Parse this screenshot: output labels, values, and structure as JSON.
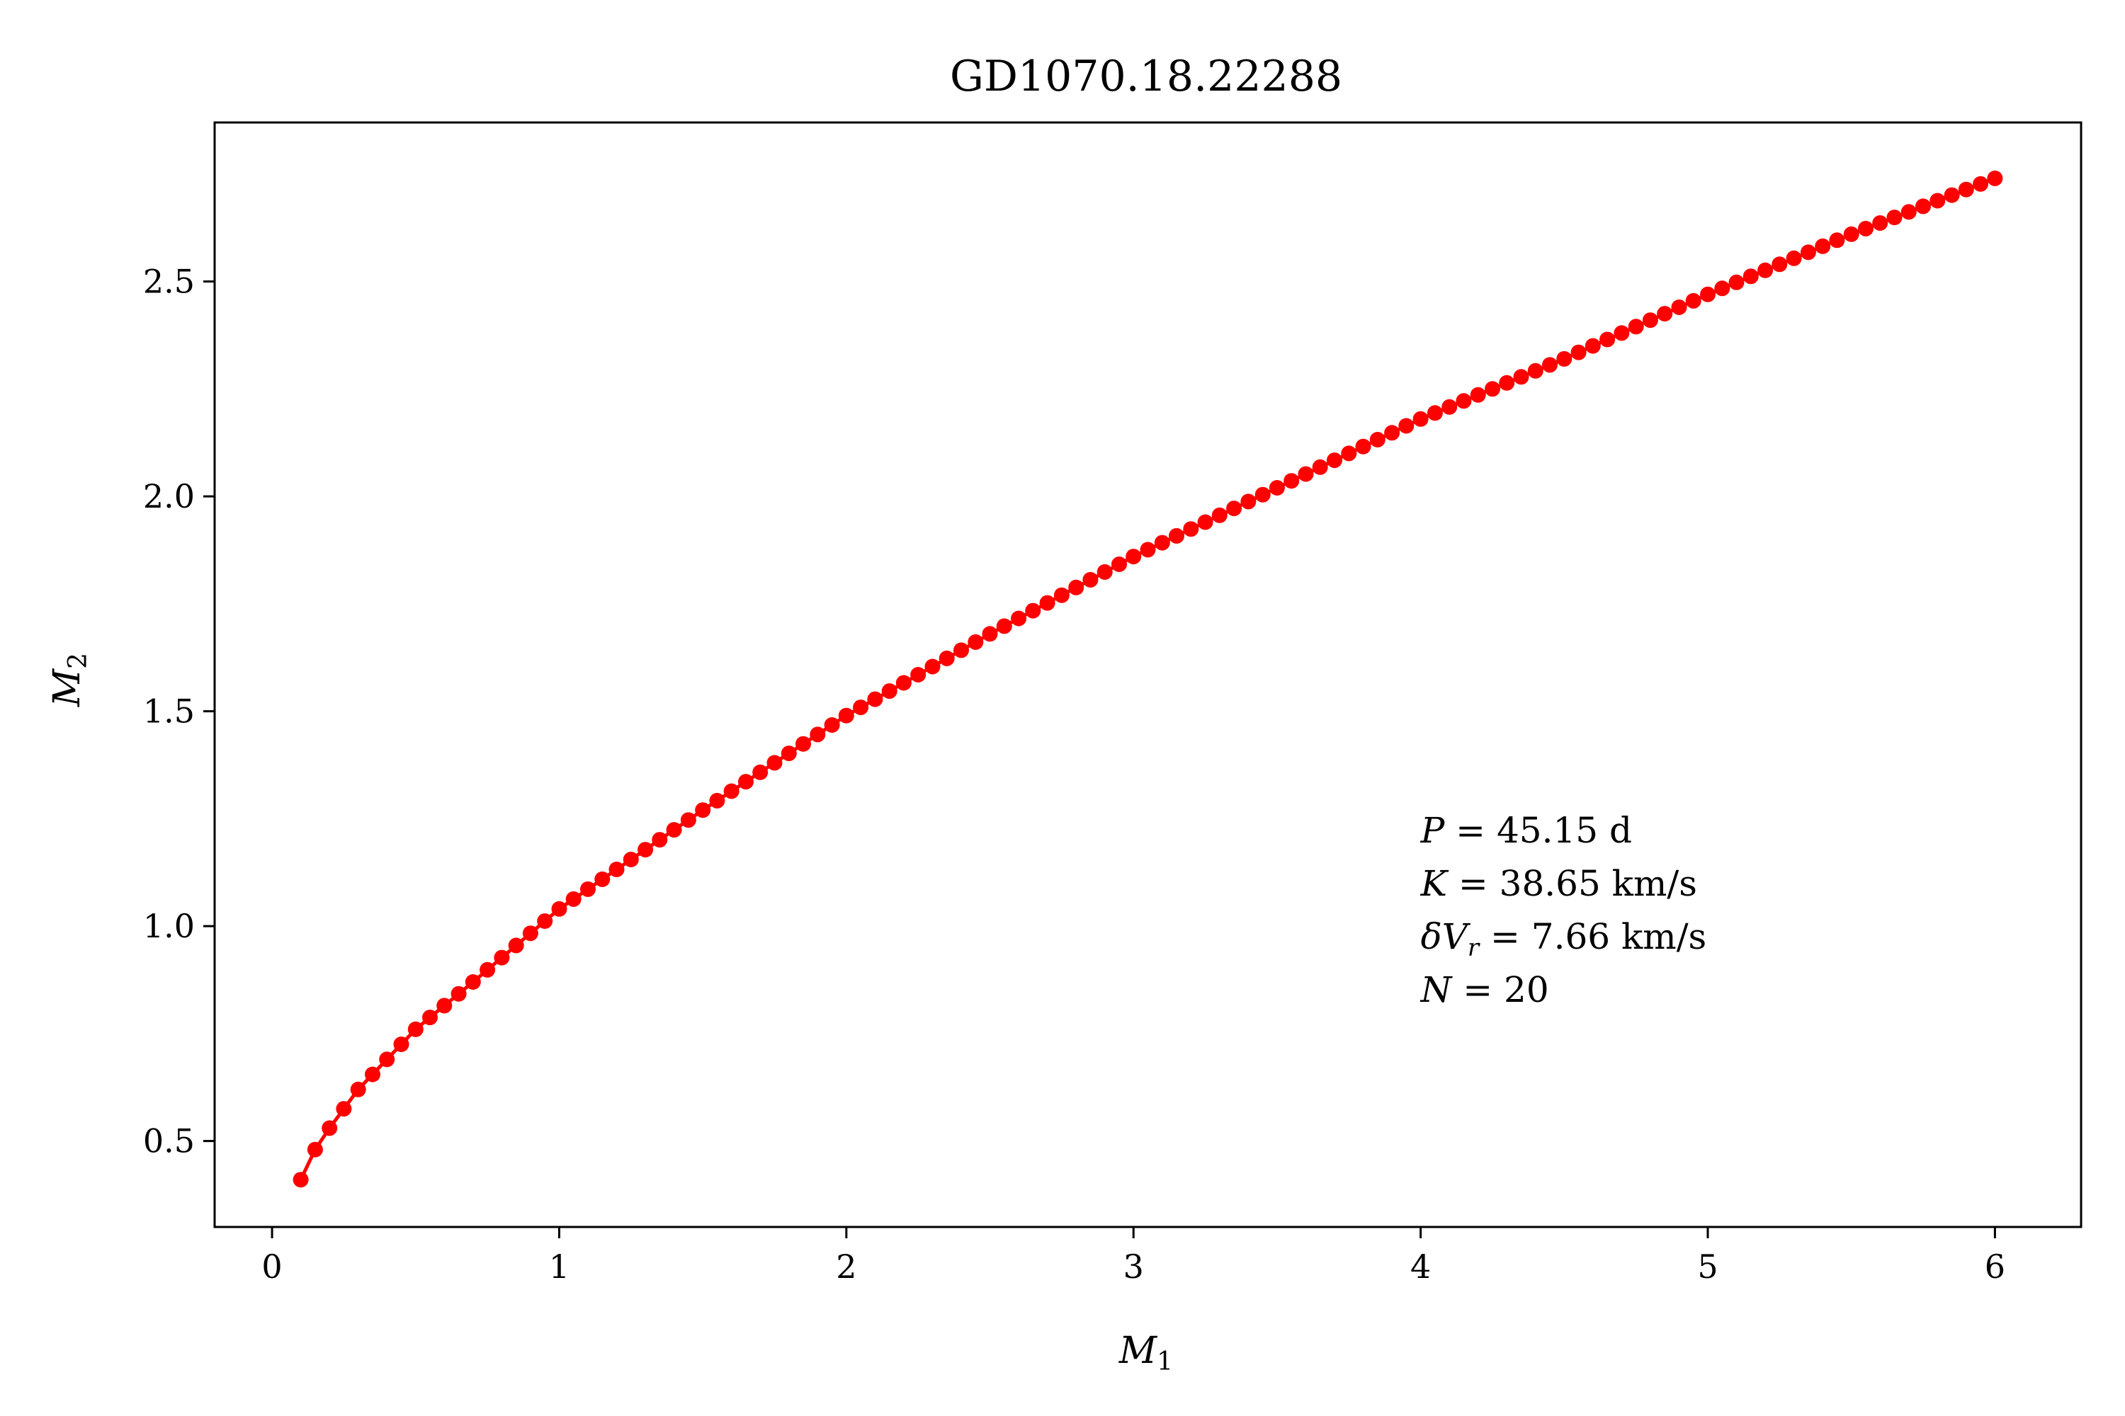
{
  "chart_data": {
    "type": "line",
    "title": "GD1070.18.22288",
    "xlabel": "M",
    "xlabel_sub": "1",
    "ylabel": "M",
    "ylabel_sub": "2",
    "xlim": [
      -0.2,
      6.3
    ],
    "ylim": [
      0.3,
      2.87
    ],
    "xticks": [
      0,
      1,
      2,
      3,
      4,
      5,
      6
    ],
    "xtick_labels": [
      "0",
      "1",
      "2",
      "3",
      "4",
      "5",
      "6"
    ],
    "yticks": [
      0.5,
      1.0,
      1.5,
      2.0,
      2.5
    ],
    "ytick_labels": [
      "0.5",
      "1.0",
      "1.5",
      "2.0",
      "2.5"
    ],
    "grid": false,
    "series": [
      {
        "color": "#ff0000",
        "marker": "circle",
        "x_start": 0.1,
        "x_end": 6.0,
        "x_step": 0.05,
        "y_anchor_x": [
          0.1,
          0.15,
          0.2,
          0.3,
          0.5,
          0.7,
          1.0,
          1.5,
          2.0,
          2.5,
          3.0,
          3.5,
          4.0,
          4.5,
          5.0,
          5.5,
          6.0
        ],
        "y_anchor_y": [
          0.41,
          0.48,
          0.53,
          0.62,
          0.76,
          0.87,
          1.04,
          1.27,
          1.49,
          1.68,
          1.86,
          2.02,
          2.18,
          2.32,
          2.47,
          2.61,
          2.74
        ]
      }
    ],
    "annotation": {
      "lines": [
        {
          "var": "P",
          "sub": "",
          "value": " = 45.15 d"
        },
        {
          "var": "K",
          "sub": "",
          "value": " = 38.65 km/s"
        },
        {
          "var": "δV",
          "sub": "r",
          "value": " = 7.66 km/s"
        },
        {
          "var": "N",
          "sub": "",
          "value": " = 20"
        }
      ]
    }
  }
}
